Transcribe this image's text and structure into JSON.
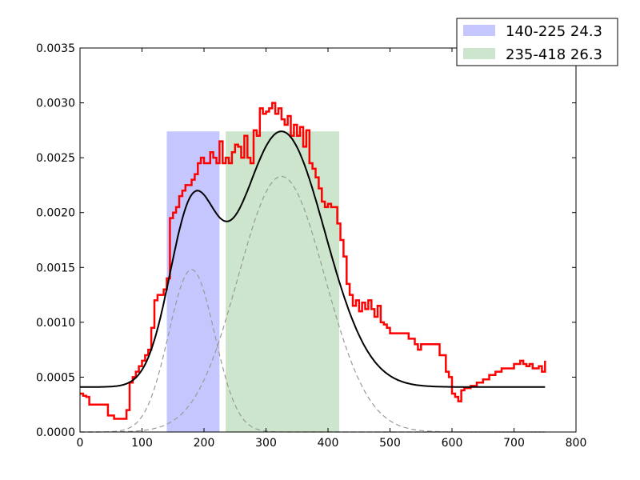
{
  "chart_data": {
    "type": "line",
    "title": "",
    "xlabel": "",
    "ylabel": "",
    "xlim": [
      0,
      800
    ],
    "ylim": [
      0,
      0.0035
    ],
    "xticks": [
      "0",
      "100",
      "200",
      "300",
      "400",
      "500",
      "600",
      "700",
      "800"
    ],
    "yticks": [
      "0.0000",
      "0.0005",
      "0.0010",
      "0.0015",
      "0.0020",
      "0.0025",
      "0.0030",
      "0.0035"
    ],
    "grid": false,
    "legend_position": "top-right, outside axes",
    "spans": [
      {
        "name": "140-225 24.3",
        "x0": 140,
        "x1": 225,
        "y_top": 0.00274,
        "color": "#c6c6ff"
      },
      {
        "name": "235-418 26.3",
        "x0": 235,
        "x1": 418,
        "y_top": 0.00274,
        "color": "#cce5cc"
      }
    ],
    "series": [
      {
        "style": "red-step",
        "color": "#ff0000",
        "x": [
          0,
          5,
          10,
          15,
          25,
          35,
          45,
          55,
          65,
          70,
          75,
          80,
          85,
          90,
          95,
          100,
          105,
          110,
          115,
          120,
          125,
          130,
          135,
          140,
          145,
          150,
          155,
          160,
          165,
          170,
          175,
          180,
          185,
          190,
          195,
          200,
          205,
          210,
          215,
          220,
          225,
          230,
          235,
          240,
          245,
          250,
          255,
          260,
          265,
          270,
          275,
          280,
          285,
          290,
          295,
          300,
          305,
          310,
          315,
          320,
          325,
          330,
          335,
          340,
          345,
          350,
          355,
          360,
          365,
          370,
          375,
          380,
          385,
          390,
          395,
          400,
          405,
          410,
          415,
          420,
          425,
          430,
          435,
          440,
          445,
          450,
          455,
          460,
          465,
          470,
          475,
          480,
          485,
          490,
          495,
          500,
          510,
          520,
          530,
          540,
          545,
          550,
          555,
          560,
          570,
          580,
          590,
          595,
          600,
          605,
          610,
          615,
          620,
          630,
          640,
          650,
          660,
          670,
          680,
          690,
          700,
          710,
          715,
          720,
          725,
          730,
          740,
          745,
          750
        ],
        "y": [
          0.00035,
          0.00033,
          0.00032,
          0.00025,
          0.00025,
          0.00025,
          0.00015,
          0.00012,
          0.00012,
          0.00012,
          0.0002,
          0.00045,
          0.0005,
          0.00055,
          0.0006,
          0.00065,
          0.0007,
          0.00075,
          0.00095,
          0.0012,
          0.00125,
          0.00125,
          0.0013,
          0.0014,
          0.00195,
          0.002,
          0.00205,
          0.00215,
          0.0022,
          0.00225,
          0.00225,
          0.0023,
          0.00235,
          0.00245,
          0.0025,
          0.00245,
          0.00245,
          0.00255,
          0.0025,
          0.00245,
          0.00265,
          0.00245,
          0.0025,
          0.00245,
          0.00255,
          0.00262,
          0.0026,
          0.0025,
          0.0027,
          0.0025,
          0.00245,
          0.00275,
          0.0027,
          0.00295,
          0.0029,
          0.00292,
          0.00295,
          0.003,
          0.0029,
          0.00295,
          0.00285,
          0.0028,
          0.00288,
          0.0027,
          0.0028,
          0.0027,
          0.00278,
          0.0026,
          0.00275,
          0.00245,
          0.0024,
          0.00232,
          0.00222,
          0.0021,
          0.00205,
          0.00208,
          0.00205,
          0.00205,
          0.0019,
          0.00175,
          0.0016,
          0.00135,
          0.00125,
          0.00115,
          0.0012,
          0.0011,
          0.00118,
          0.00112,
          0.0012,
          0.00112,
          0.00105,
          0.00115,
          0.001,
          0.00098,
          0.00095,
          0.0009,
          0.0009,
          0.0009,
          0.00085,
          0.0008,
          0.00075,
          0.0008,
          0.0008,
          0.0008,
          0.0008,
          0.0007,
          0.00055,
          0.0005,
          0.00035,
          0.00032,
          0.00028,
          0.00038,
          0.0004,
          0.00042,
          0.00045,
          0.00048,
          0.00052,
          0.00055,
          0.00058,
          0.00058,
          0.00062,
          0.00065,
          0.00062,
          0.0006,
          0.00062,
          0.00058,
          0.0006,
          0.00055,
          0.00065
        ]
      },
      {
        "style": "black-fit",
        "color": "#000000",
        "mixture": {
          "baseline": 0.00041,
          "components": [
            {
              "amplitude": 0.00148,
              "mean": 180,
              "sd": 37
            },
            {
              "amplitude": 0.00233,
              "mean": 325,
              "sd": 70
            }
          ]
        },
        "x_range": [
          0,
          750
        ]
      },
      {
        "style": "gray-dashed-component-1",
        "color": "#999999",
        "gaussian": {
          "amplitude": 0.00148,
          "mean": 180,
          "sd": 37
        },
        "x_range": [
          0,
          750
        ]
      },
      {
        "style": "gray-dashed-component-2",
        "color": "#999999",
        "gaussian": {
          "amplitude": 0.00233,
          "mean": 325,
          "sd": 70
        },
        "x_range": [
          0,
          750
        ]
      }
    ]
  }
}
